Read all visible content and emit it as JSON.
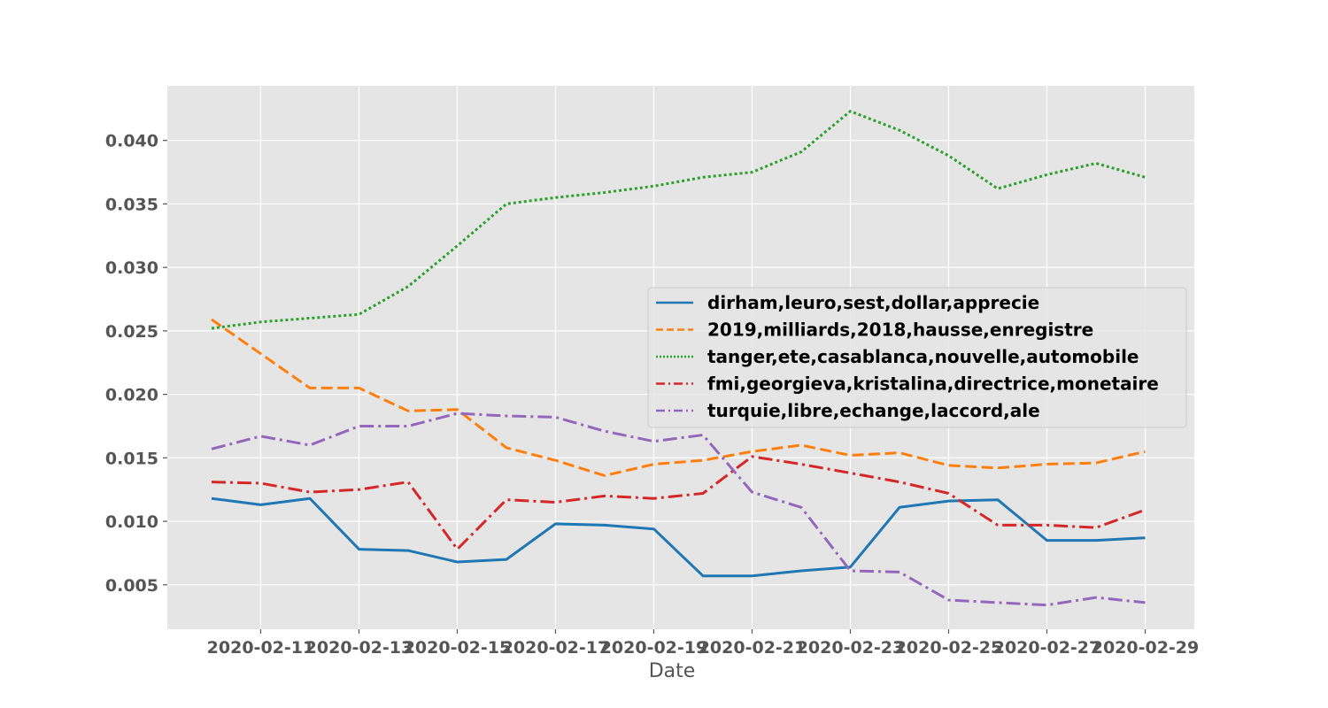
{
  "chart_data": {
    "type": "line",
    "title": "",
    "xlabel": "Date",
    "ylabel": "",
    "ylim": [
      0.0015,
      0.0443
    ],
    "y_ticks": [
      "0.005",
      "0.010",
      "0.015",
      "0.020",
      "0.025",
      "0.030",
      "0.035",
      "0.040"
    ],
    "y_tick_values": [
      0.005,
      0.01,
      0.015,
      0.02,
      0.025,
      0.03,
      0.035,
      0.04
    ],
    "x_ticks": [
      "2020-02-11",
      "2020-02-13",
      "2020-02-15",
      "2020-02-17",
      "2020-02-19",
      "2020-02-21",
      "2020-02-23",
      "2020-02-25",
      "2020-02-27",
      "2020-02-29"
    ],
    "x_tick_positions": [
      1,
      3,
      5,
      7,
      9,
      11,
      13,
      15,
      17,
      19
    ],
    "xlim": [
      -0.9,
      20
    ],
    "x": [
      0,
      1,
      2,
      3,
      4,
      5,
      6,
      7,
      8,
      9,
      10,
      11,
      12,
      13,
      14,
      15,
      16,
      17,
      18,
      19
    ],
    "grid": true,
    "legend_position": "center-right",
    "background_color": "#e5e5e5",
    "series": [
      {
        "name": "dirham,leuro,sest,dollar,apprecie",
        "color": "#1f77b4",
        "style": "solid",
        "values": [
          0.0118,
          0.0113,
          0.0118,
          0.0078,
          0.0077,
          0.0068,
          0.007,
          0.0098,
          0.0097,
          0.0094,
          0.0057,
          0.0057,
          0.0061,
          0.0064,
          0.0111,
          0.0116,
          0.0117,
          0.0085,
          0.0085,
          0.0087
        ]
      },
      {
        "name": "2019,milliards,2018,hausse,enregistre",
        "color": "#ff7f0e",
        "style": "dashed",
        "values": [
          0.0259,
          0.0232,
          0.0205,
          0.0205,
          0.0187,
          0.0188,
          0.0158,
          0.0148,
          0.0136,
          0.0145,
          0.0148,
          0.0155,
          0.016,
          0.0152,
          0.0154,
          0.0144,
          0.0142,
          0.0145,
          0.0146,
          0.0155
        ]
      },
      {
        "name": "tanger,ete,casablanca,nouvelle,automobile",
        "color": "#2ca02c",
        "style": "dotted",
        "values": [
          0.0252,
          0.0257,
          0.026,
          0.0263,
          0.0285,
          0.0317,
          0.035,
          0.0355,
          0.0359,
          0.0364,
          0.0371,
          0.0375,
          0.0391,
          0.0423,
          0.0408,
          0.0388,
          0.0362,
          0.0373,
          0.0382,
          0.0371
        ]
      },
      {
        "name": "fmi,georgieva,kristalina,directrice,monetaire",
        "color": "#d62728",
        "style": "dashdot",
        "values": [
          0.0131,
          0.013,
          0.0123,
          0.0125,
          0.0131,
          0.0078,
          0.0117,
          0.0115,
          0.012,
          0.0118,
          0.0122,
          0.0151,
          0.0145,
          0.0138,
          0.0131,
          0.0122,
          0.0097,
          0.0097,
          0.0095,
          0.0109
        ]
      },
      {
        "name": "turquie,libre,echange,laccord,ale",
        "color": "#9467bd",
        "style": "dashdot",
        "values": [
          0.0157,
          0.0167,
          0.016,
          0.0175,
          0.0175,
          0.0185,
          0.0183,
          0.0182,
          0.0171,
          0.0163,
          0.0168,
          0.0123,
          0.0111,
          0.0061,
          0.006,
          0.0038,
          0.0036,
          0.0034,
          0.004,
          0.0036
        ]
      }
    ]
  }
}
